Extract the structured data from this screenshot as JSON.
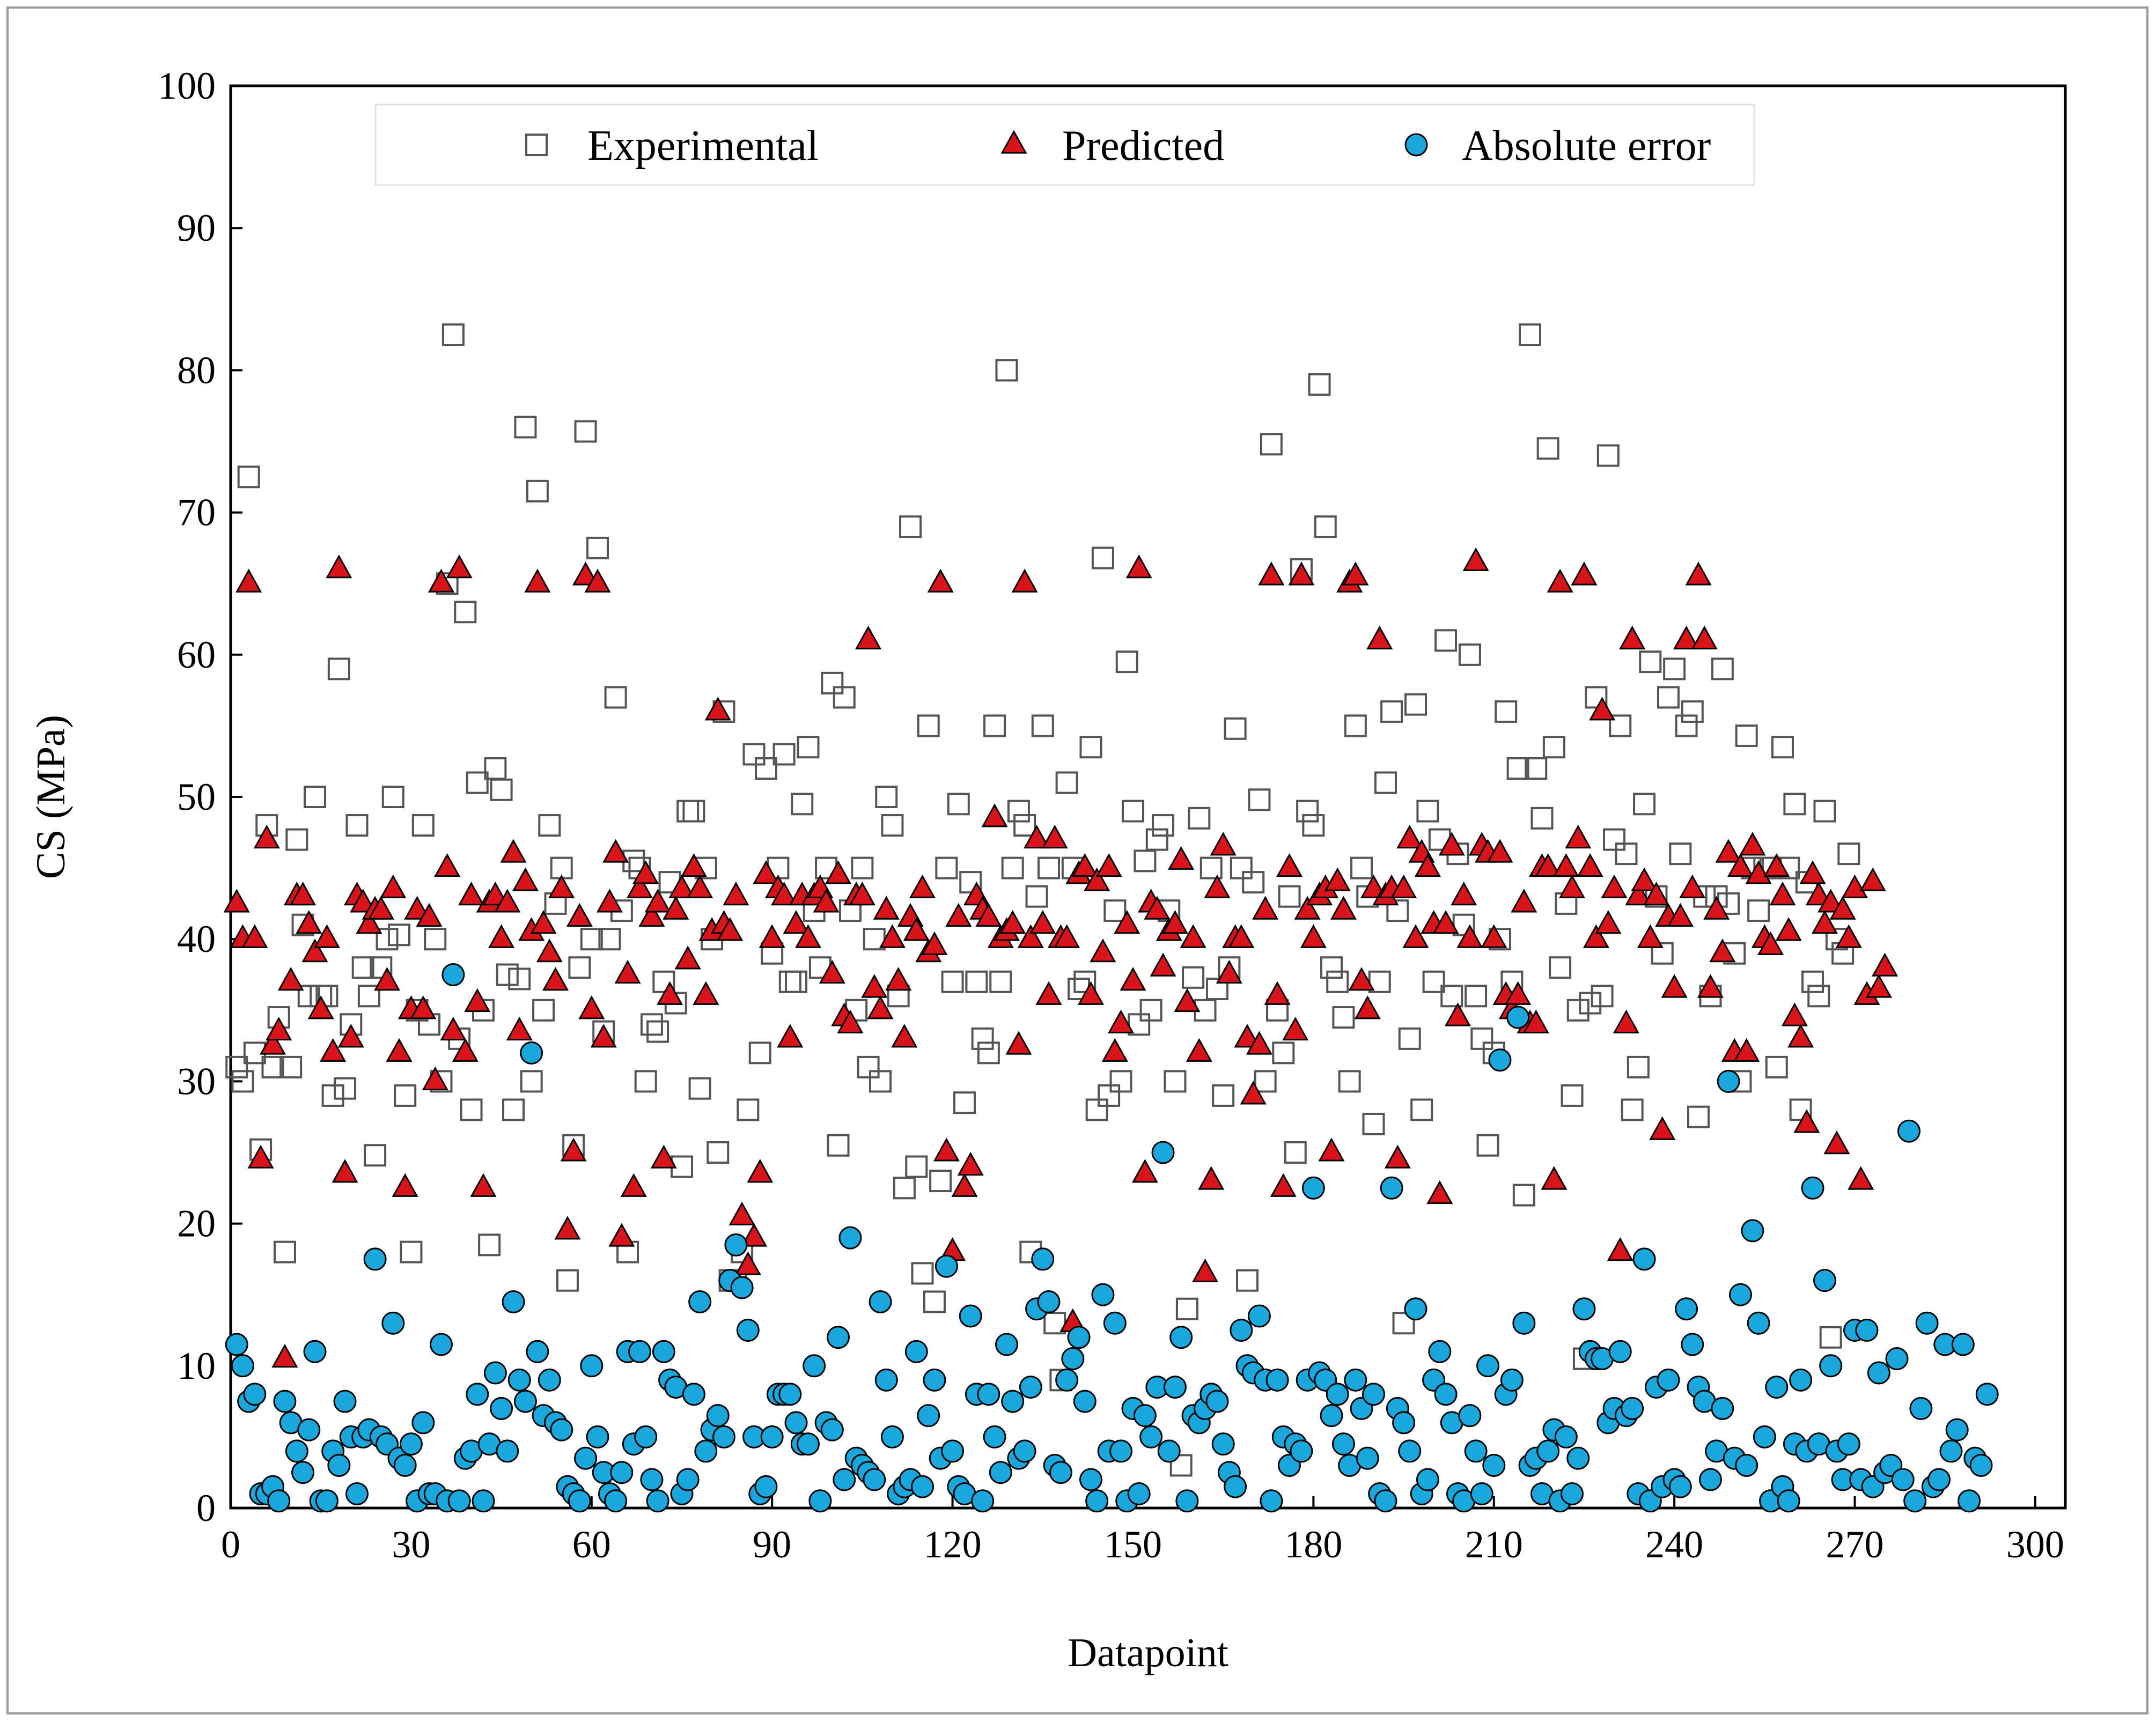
{
  "chart_data": {
    "type": "scatter",
    "title": "",
    "xlabel": "Datapoint",
    "ylabel": "CS (MPa)",
    "xlim": [
      0,
      305
    ],
    "ylim": [
      0,
      100
    ],
    "xticks": [
      0,
      30,
      60,
      90,
      120,
      150,
      180,
      210,
      240,
      270,
      300
    ],
    "yticks": [
      0,
      10,
      20,
      30,
      40,
      50,
      60,
      70,
      80,
      90,
      100
    ],
    "grid": false,
    "legend_position": "top",
    "colors": {
      "experimental": "#555555",
      "predicted": "#d9151b",
      "absolute_error": "#1aa7dc"
    },
    "series": [
      {
        "name": "Experimental",
        "marker": "square-open",
        "values": [
          31.0,
          30.0,
          72.5,
          32.0,
          25.2,
          48.0,
          31.0,
          34.5,
          18.0,
          31.0,
          47.0,
          41.0,
          36.0,
          50.0,
          36.0,
          36.0,
          29.0,
          59.0,
          29.5,
          34.0,
          48.0,
          38.0,
          36.0,
          24.8,
          38.0,
          40.0,
          50.0,
          40.3,
          29.0,
          18.0,
          35.0,
          48.0,
          34.0,
          40.0,
          30.0,
          65.0,
          82.5,
          33.0,
          63.0,
          28.0,
          51.0,
          35.0,
          18.5,
          52.0,
          50.5,
          37.5,
          28.0,
          37.2,
          76.0,
          30.0,
          71.5,
          35.0,
          48.0,
          42.5,
          45.0,
          16.0,
          25.5,
          38.0,
          75.7,
          40.0,
          67.5,
          33.5,
          40.0,
          57.0,
          42.0,
          18.0,
          45.5,
          45.0,
          30.0,
          34.0,
          33.5,
          37.0,
          44.0,
          35.5,
          24.0,
          49.0,
          49.0,
          29.5,
          45.0,
          40.0,
          25.0,
          56.0,
          16.0,
          16.0,
          18.0,
          28.0,
          53.0,
          32.0,
          52.0,
          39.0,
          45.0,
          53.0,
          37.0,
          37.0,
          49.5,
          53.5,
          42.0,
          38.0,
          45.0,
          58.0,
          25.5,
          57.0,
          42.0,
          35.0,
          45.0,
          31.0,
          40.0,
          30.0,
          50.0,
          48.0,
          36.0,
          22.5,
          69.0,
          24.0,
          16.5,
          55.0,
          14.5,
          23.0,
          45.0,
          37.0,
          49.5,
          28.5,
          44.0,
          37.0,
          33.0,
          32.0,
          55.0,
          37.0,
          80.0,
          45.0,
          49.0,
          48.0,
          18.0,
          43.0,
          55.0,
          45.0,
          13.0,
          9.0,
          51.0,
          45.0,
          36.5,
          37.0,
          53.5,
          28.0,
          66.8,
          29.0,
          42.0,
          30.0,
          59.5,
          49.0,
          34.0,
          45.5,
          35.0,
          47.0,
          48.0,
          42.0,
          30.0,
          3.0,
          14.0,
          37.3,
          48.5,
          35.0,
          45.0,
          36.5,
          29.0,
          38.0,
          54.8,
          45.0,
          16.0,
          44.0,
          49.8,
          30.0,
          74.8,
          35.0,
          32.0,
          43.0,
          25.0,
          66.0,
          49.0,
          48.0,
          79.0,
          69.0,
          38.0,
          37.0,
          34.5,
          30.0,
          55.0,
          45.0,
          43.0,
          27.0,
          37.0,
          51.0,
          56.0,
          42.0,
          13.0,
          33.0,
          56.5,
          28.0,
          49.0,
          37.0,
          47.0,
          61.0,
          36.0,
          46.0,
          41.0,
          60.0,
          36.0,
          33.0,
          25.5,
          32.0,
          40.0,
          56.0,
          37.0,
          52.0,
          22.0,
          82.5,
          52.0,
          48.5,
          74.5,
          53.5,
          38.0,
          42.5,
          29.0,
          35.0,
          10.5,
          35.5,
          57.0,
          36.0,
          74.0,
          47.0,
          55.0,
          46.0,
          28.0,
          31.0,
          49.5,
          59.5,
          43.0,
          39.0,
          57.0,
          59.0,
          46.0,
          55.0,
          56.0,
          27.5,
          43.0,
          36.0,
          43.0,
          59.0,
          42.5,
          39.0,
          30.0,
          54.3,
          45.0,
          42.0,
          45.0,
          45.0,
          31.0,
          53.5,
          45.0,
          49.5,
          28.0,
          44.0,
          37.0,
          36.0,
          49.0,
          12.0,
          40.0,
          39.0,
          46.0
        ]
      },
      {
        "name": "Predicted",
        "marker": "triangle",
        "values": [
          42.5,
          40.0,
          65.0,
          40.0,
          24.5,
          47.0,
          32.5,
          33.5,
          10.5,
          37.0,
          43.0,
          43.0,
          41.0,
          39.0,
          35.0,
          40.0,
          32.0,
          66.0,
          23.5,
          33.0,
          43.0,
          42.5,
          41.0,
          42.0,
          42.0,
          37.0,
          43.5,
          32.0,
          22.5,
          35.0,
          42.0,
          35.0,
          41.5,
          30.0,
          65.0,
          45.0,
          33.5,
          66.0,
          32.0,
          43.0,
          35.5,
          22.5,
          42.5,
          43.0,
          40.0,
          42.5,
          46.0,
          33.5,
          44.0,
          40.5,
          65.0,
          41.0,
          39.0,
          37.0,
          43.5,
          19.5,
          25.0,
          41.5,
          65.5,
          35.0,
          65.0,
          33.0,
          42.5,
          46.0,
          19.0,
          37.5,
          22.5,
          43.5,
          44.5,
          41.5,
          42.5,
          24.5,
          36.0,
          42.0,
          43.5,
          38.5,
          45.0,
          43.5,
          36.0,
          40.5,
          56.0,
          41.0,
          40.5,
          43.0,
          20.5,
          17.0,
          19.0,
          23.5,
          44.5,
          40.0,
          43.5,
          43.0,
          33.0,
          41.0,
          43.0,
          40.0,
          43.0,
          43.5,
          42.5,
          37.5,
          44.5,
          34.5,
          34.0,
          43.0,
          43.0,
          61.0,
          36.5,
          35.0,
          42.0,
          40.0,
          37.0,
          33.0,
          41.5,
          40.5,
          43.5,
          39.0,
          39.5,
          65.0,
          25.0,
          18.0,
          41.5,
          22.5,
          24.0,
          43.0,
          42.0,
          41.5,
          48.5,
          40.0,
          40.5,
          41.0,
          32.5,
          65.0,
          40.0,
          47.0,
          41.0,
          36.0,
          47.0,
          40.0,
          40.0,
          13.0,
          44.5,
          45.0,
          36.0,
          44.0,
          39.0,
          45.0,
          32.0,
          34.0,
          41.0,
          37.0,
          66.0,
          23.5,
          42.5,
          42.0,
          38.0,
          40.5,
          41.0,
          45.5,
          35.5,
          40.0,
          32.0,
          16.5,
          23.0,
          43.5,
          46.5,
          37.5,
          40.0,
          40.0,
          33.0,
          29.0,
          32.5,
          42.0,
          65.5,
          36.0,
          22.5,
          45.0,
          33.5,
          65.5,
          42.0,
          40.0,
          43.0,
          43.5,
          25.0,
          44.0,
          42.0,
          65.0,
          65.5,
          37.0,
          35.0,
          43.5,
          61.0,
          43.0,
          43.5,
          24.5,
          43.5,
          47.0,
          40.0,
          46.0,
          45.0,
          41.0,
          22.0,
          41.0,
          46.5,
          34.5,
          43.0,
          40.0,
          66.5,
          46.5,
          46.0,
          40.0,
          46.0,
          36.0,
          35.0,
          36.0,
          42.5,
          34.0,
          34.0,
          45.0,
          45.0,
          23.0,
          65.0,
          45.0,
          43.5,
          47.0,
          65.5,
          45.0,
          40.0,
          56.0,
          41.0,
          43.5,
          18.0,
          34.0,
          61.0,
          43.0,
          44.0,
          40.0,
          43.0,
          26.5,
          41.5,
          36.5,
          41.5,
          61.0,
          43.5,
          65.5,
          61.0,
          36.5,
          42.0,
          39.0,
          46.0,
          32.0,
          45.0,
          32.0,
          46.5,
          44.5,
          40.0,
          39.5,
          45.0,
          43.0,
          40.5,
          34.5,
          33.0,
          27.0,
          44.5,
          43.0,
          41.0,
          42.5,
          25.5,
          42.0,
          40.0,
          43.5,
          23.0,
          36.0,
          44.0,
          36.5,
          38.0
        ]
      },
      {
        "name": "Absolute error",
        "marker": "circle",
        "values": [
          11.5,
          10.0,
          7.5,
          8.0,
          1.0,
          1.0,
          1.5,
          0.5,
          7.5,
          6.0,
          4.0,
          2.5,
          5.5,
          11.0,
          0.5,
          0.5,
          4.0,
          3.0,
          7.5,
          5.0,
          1.0,
          5.0,
          5.5,
          17.5,
          5.0,
          4.5,
          13.0,
          3.5,
          3.0,
          4.5,
          0.5,
          6.0,
          1.0,
          1.0,
          11.5,
          0.5,
          37.5,
          0.5,
          3.5,
          4.0,
          8.0,
          0.5,
          4.5,
          9.5,
          7.0,
          4.0,
          14.5,
          9.0,
          7.5,
          32.0,
          11.0,
          6.5,
          9.0,
          6.0,
          5.5,
          1.5,
          1.0,
          0.5,
          3.5,
          10.0,
          5.0,
          2.5,
          1.0,
          0.5,
          2.5,
          11.0,
          4.5,
          11.0,
          5.0,
          2.0,
          0.5,
          11.0,
          9.0,
          8.5,
          1.0,
          2.0,
          8.0,
          14.5,
          4.0,
          5.5,
          6.5,
          5.0,
          16.0,
          18.5,
          15.5,
          12.5,
          5.0,
          1.0,
          1.5,
          5.0,
          8.0,
          8.0,
          8.0,
          6.0,
          4.5,
          4.5,
          10.0,
          0.5,
          6.0,
          5.5,
          12.0,
          2.0,
          19.0,
          3.5,
          3.0,
          2.5,
          2.0,
          14.5,
          9.0,
          5.0,
          1.0,
          1.5,
          2.0,
          11.0,
          1.5,
          6.5,
          9.0,
          3.5,
          17.0,
          4.0,
          1.5,
          1.0,
          13.5,
          8.0,
          0.5,
          8.0,
          5.0,
          2.5,
          11.5,
          7.5,
          3.5,
          4.0,
          8.5,
          14.0,
          17.5,
          14.5,
          3.0,
          2.5,
          9.0,
          10.5,
          12.0,
          7.5,
          2.0,
          0.5,
          15.0,
          4.0,
          13.0,
          4.0,
          0.5,
          7.0,
          1.0,
          6.5,
          5.0,
          8.5,
          25.0,
          4.0,
          8.5,
          12.0,
          0.5,
          6.5,
          6.0,
          7.0,
          8.0,
          7.5,
          4.5,
          2.5,
          1.5,
          12.5,
          10.0,
          9.5,
          13.5,
          9.0,
          0.5,
          9.0,
          5.0,
          3.0,
          4.5,
          4.0,
          9.0,
          22.5,
          9.5,
          9.0,
          6.5,
          8.0,
          4.5,
          3.0,
          9.0,
          7.0,
          3.5,
          8.0,
          1.0,
          0.5,
          22.5,
          7.0,
          6.0,
          4.0,
          14.0,
          1.0,
          2.0,
          9.0,
          11.0,
          8.0,
          6.0,
          1.0,
          0.5,
          6.5,
          4.0,
          1.0,
          10.0,
          3.0,
          31.5,
          8.0,
          9.0,
          34.5,
          13.0,
          3.0,
          3.5,
          1.0,
          4.0,
          5.5,
          0.5,
          5.0,
          1.0,
          3.5,
          14.0,
          11.0,
          10.5,
          10.5,
          6.0,
          7.0,
          11.0,
          6.5,
          7.0,
          1.0,
          17.5,
          0.5,
          8.5,
          1.5,
          9.0,
          2.0,
          1.5,
          14.0,
          11.5,
          8.5,
          7.5,
          2.0,
          4.0,
          7.0,
          30.0,
          3.5,
          15.0,
          3.0,
          19.5,
          13.0,
          5.0,
          0.5,
          8.5,
          1.5,
          0.5,
          4.5,
          9.0,
          4.0,
          22.5,
          4.5,
          16.0,
          10.0,
          4.0,
          2.0,
          4.5,
          12.5,
          2.0,
          12.5,
          1.5,
          9.5,
          2.5,
          3.0,
          10.5,
          2.0,
          26.5,
          0.5,
          7.0,
          13.0,
          1.5,
          2.0,
          11.5,
          4.0,
          5.5,
          11.5,
          0.5,
          3.5,
          3.0,
          8.0
        ]
      }
    ]
  }
}
